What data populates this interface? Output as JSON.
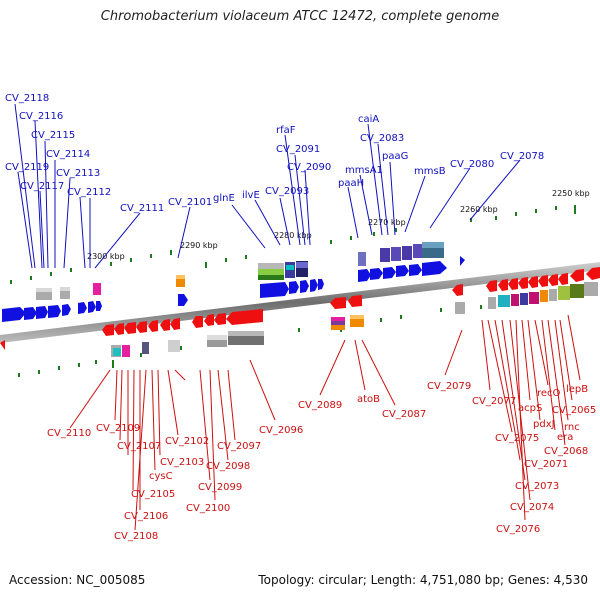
{
  "title": "Chromobacterium violaceum ATCC 12472, complete genome",
  "accession": "Accession: NC_005085",
  "summary": "Topology: circular; Length: 4,751,080 bp; Genes: 4,530",
  "ruler": [
    "2300 kbp",
    "2290 kbp",
    "2280 kbp",
    "2270 kbp",
    "2260 kbp",
    "2250 kbp"
  ],
  "forward_genes": [
    "CV_2118",
    "CV_2116",
    "CV_2115",
    "CV_2114",
    "CV_2119",
    "CV_2113",
    "CV_2117",
    "CV_2112",
    "CV_2111",
    "CV_2101",
    "glnE",
    "ilvE",
    "CV_2093",
    "rfaF",
    "CV_2091",
    "CV_2090",
    "caiA",
    "CV_2083",
    "paaG",
    "mmsA1",
    "paaH",
    "mmsB",
    "CV_2080",
    "CV_2078"
  ],
  "reverse_genes": [
    "CV_2110",
    "CV_2109",
    "CV_2107",
    "CV_2102",
    "CV_2097",
    "cysC",
    "CV_2103",
    "CV_2098",
    "CV_2105",
    "CV_2099",
    "CV_2106",
    "CV_2100",
    "CV_2108",
    "CV_2096",
    "CV_2089",
    "atoB",
    "CV_2087",
    "CV_2079",
    "CV_2077",
    "acpS",
    "recO",
    "lepB",
    "pdxJ",
    "rnc",
    "CV_2065",
    "CV_2075",
    "era",
    "CV_2068",
    "CV_2071",
    "CV_2073",
    "CV_2074",
    "CV_2076"
  ],
  "colors": {
    "forward": "#1010c0",
    "reverse": "#cc1010",
    "backbone": "#808080",
    "tick": "#1f7a1f"
  }
}
